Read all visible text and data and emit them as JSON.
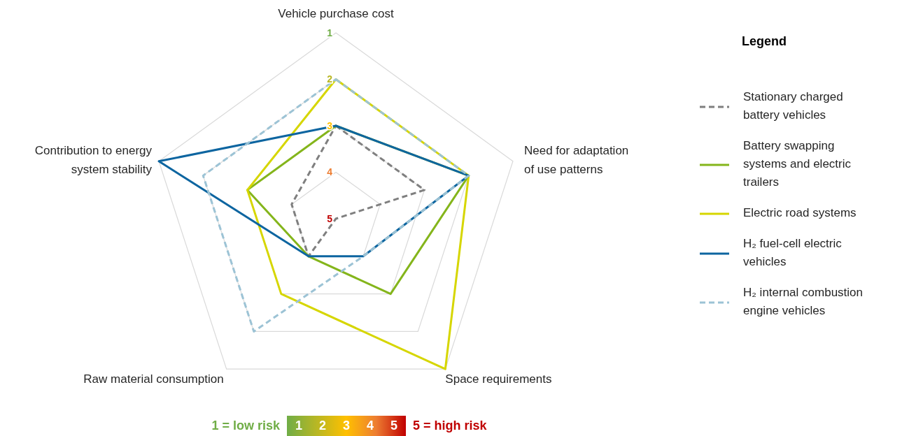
{
  "chart_data": {
    "type": "radar",
    "categories": [
      "Vehicle purchase cost",
      "Need for adaptation of use patterns",
      "Space requirements",
      "Raw material consumption",
      "Contribution to energy system stability"
    ],
    "series": [
      {
        "name": "Stationary charged battery vehicles",
        "color": "#7f7f7f",
        "line_style": "dashed",
        "values": [
          3,
          3,
          5,
          4,
          4
        ]
      },
      {
        "name": "Battery swapping systems and electric trailers",
        "color": "#84b51b",
        "line_style": "solid",
        "values": [
          3,
          2,
          3,
          4,
          3
        ]
      },
      {
        "name": "Electric road systems",
        "color": "#d6d600",
        "line_style": "solid",
        "values": [
          2,
          2,
          1,
          3,
          3
        ]
      },
      {
        "name": "H₂ fuel-cell electric vehicles",
        "color": "#0d65a0",
        "line_style": "solid",
        "values": [
          3,
          2,
          4,
          4,
          1
        ]
      },
      {
        "name": "H₂ internal combustion engine vehicles",
        "color": "#9cc3d5",
        "line_style": "dashed",
        "values": [
          2,
          2,
          4,
          2,
          2
        ]
      }
    ],
    "ylim": [
      5,
      1
    ],
    "yticks": [
      1,
      2,
      3,
      4,
      5
    ],
    "grid": true,
    "legend": "right",
    "legend_title": "Legend",
    "marker": "none",
    "annotations": [
      "1 = low risk",
      "1",
      "2",
      "3",
      "4",
      "5",
      "5 = high risk"
    ]
  }
}
